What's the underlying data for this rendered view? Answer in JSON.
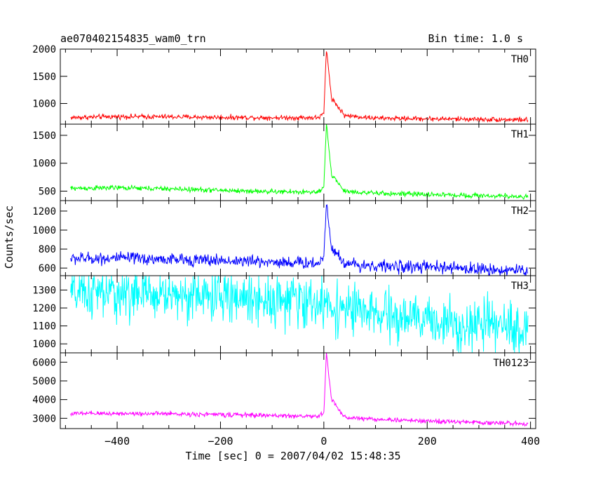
{
  "chart_data": {
    "type": "line",
    "title_left": "ae070402154835_wam0_trn",
    "title_right": "Bin time: 1.0 s",
    "xlabel": "Time [sec] 0 = 2007/04/02 15:48:35",
    "ylabel": "Counts/sec",
    "xlim": [
      -510,
      410
    ],
    "x_ticks": [
      -400,
      -200,
      0,
      200,
      400
    ],
    "x_tick_labels": [
      "−400",
      "−200",
      "0",
      "200",
      "400"
    ],
    "bin_time_s": 1.0,
    "grid": false,
    "panels": [
      {
        "name": "TH0",
        "color": "#ff0000",
        "ylim": [
          620,
          2000
        ],
        "y_ticks": [
          1000,
          1500,
          2000
        ],
        "y_tick_labels": [
          "1000",
          "1500",
          "2000"
        ],
        "profile_t": [
          -490,
          -400,
          -300,
          -200,
          -100,
          -10,
          0,
          5,
          15,
          40,
          100,
          200,
          300,
          400
        ],
        "profile_v": [
          740,
          760,
          755,
          745,
          740,
          740,
          820,
          2000,
          1100,
          780,
          730,
          720,
          710,
          700
        ],
        "noise": 22
      },
      {
        "name": "TH1",
        "color": "#00ff00",
        "ylim": [
          330,
          1700
        ],
        "y_ticks": [
          500,
          1000,
          1500
        ],
        "y_tick_labels": [
          "500",
          "1000",
          "1500"
        ],
        "profile_t": [
          -490,
          -400,
          -300,
          -200,
          -100,
          -10,
          0,
          5,
          15,
          40,
          100,
          200,
          300,
          400
        ],
        "profile_v": [
          550,
          560,
          540,
          515,
          490,
          480,
          560,
          1700,
          800,
          500,
          460,
          440,
          420,
          400
        ],
        "noise": 22
      },
      {
        "name": "TH2",
        "color": "#0000ff",
        "ylim": [
          520,
          1310
        ],
        "y_ticks": [
          600,
          800,
          1000,
          1200
        ],
        "y_tick_labels": [
          "600",
          "800",
          "1000",
          "1200"
        ],
        "profile_t": [
          -490,
          -400,
          -300,
          -200,
          -100,
          -10,
          0,
          5,
          15,
          40,
          100,
          200,
          300,
          400
        ],
        "profile_v": [
          700,
          705,
          690,
          680,
          665,
          650,
          720,
          1300,
          820,
          650,
          620,
          610,
          590,
          570
        ],
        "noise": 32
      },
      {
        "name": "TH3",
        "color": "#00ffff",
        "ylim": [
          950,
          1380
        ],
        "y_ticks": [
          1000,
          1100,
          1200,
          1300
        ],
        "y_tick_labels": [
          "1000",
          "1100",
          "1200",
          "1300"
        ],
        "profile_t": [
          -490,
          -300,
          -100,
          0,
          100,
          200,
          300,
          400
        ],
        "profile_v": [
          1280,
          1275,
          1250,
          1220,
          1160,
          1130,
          1100,
          1080
        ],
        "noise": 70
      },
      {
        "name": "TH0123",
        "color": "#ff00ff",
        "ylim": [
          2450,
          6500
        ],
        "y_ticks": [
          3000,
          4000,
          5000,
          6000
        ],
        "y_tick_labels": [
          "3000",
          "4000",
          "5000",
          "6000"
        ],
        "profile_t": [
          -490,
          -400,
          -300,
          -200,
          -100,
          -10,
          0,
          5,
          15,
          40,
          100,
          200,
          300,
          400
        ],
        "profile_v": [
          3250,
          3260,
          3240,
          3200,
          3150,
          3100,
          3300,
          6500,
          4000,
          3050,
          2950,
          2850,
          2780,
          2700
        ],
        "noise": 60
      }
    ]
  }
}
